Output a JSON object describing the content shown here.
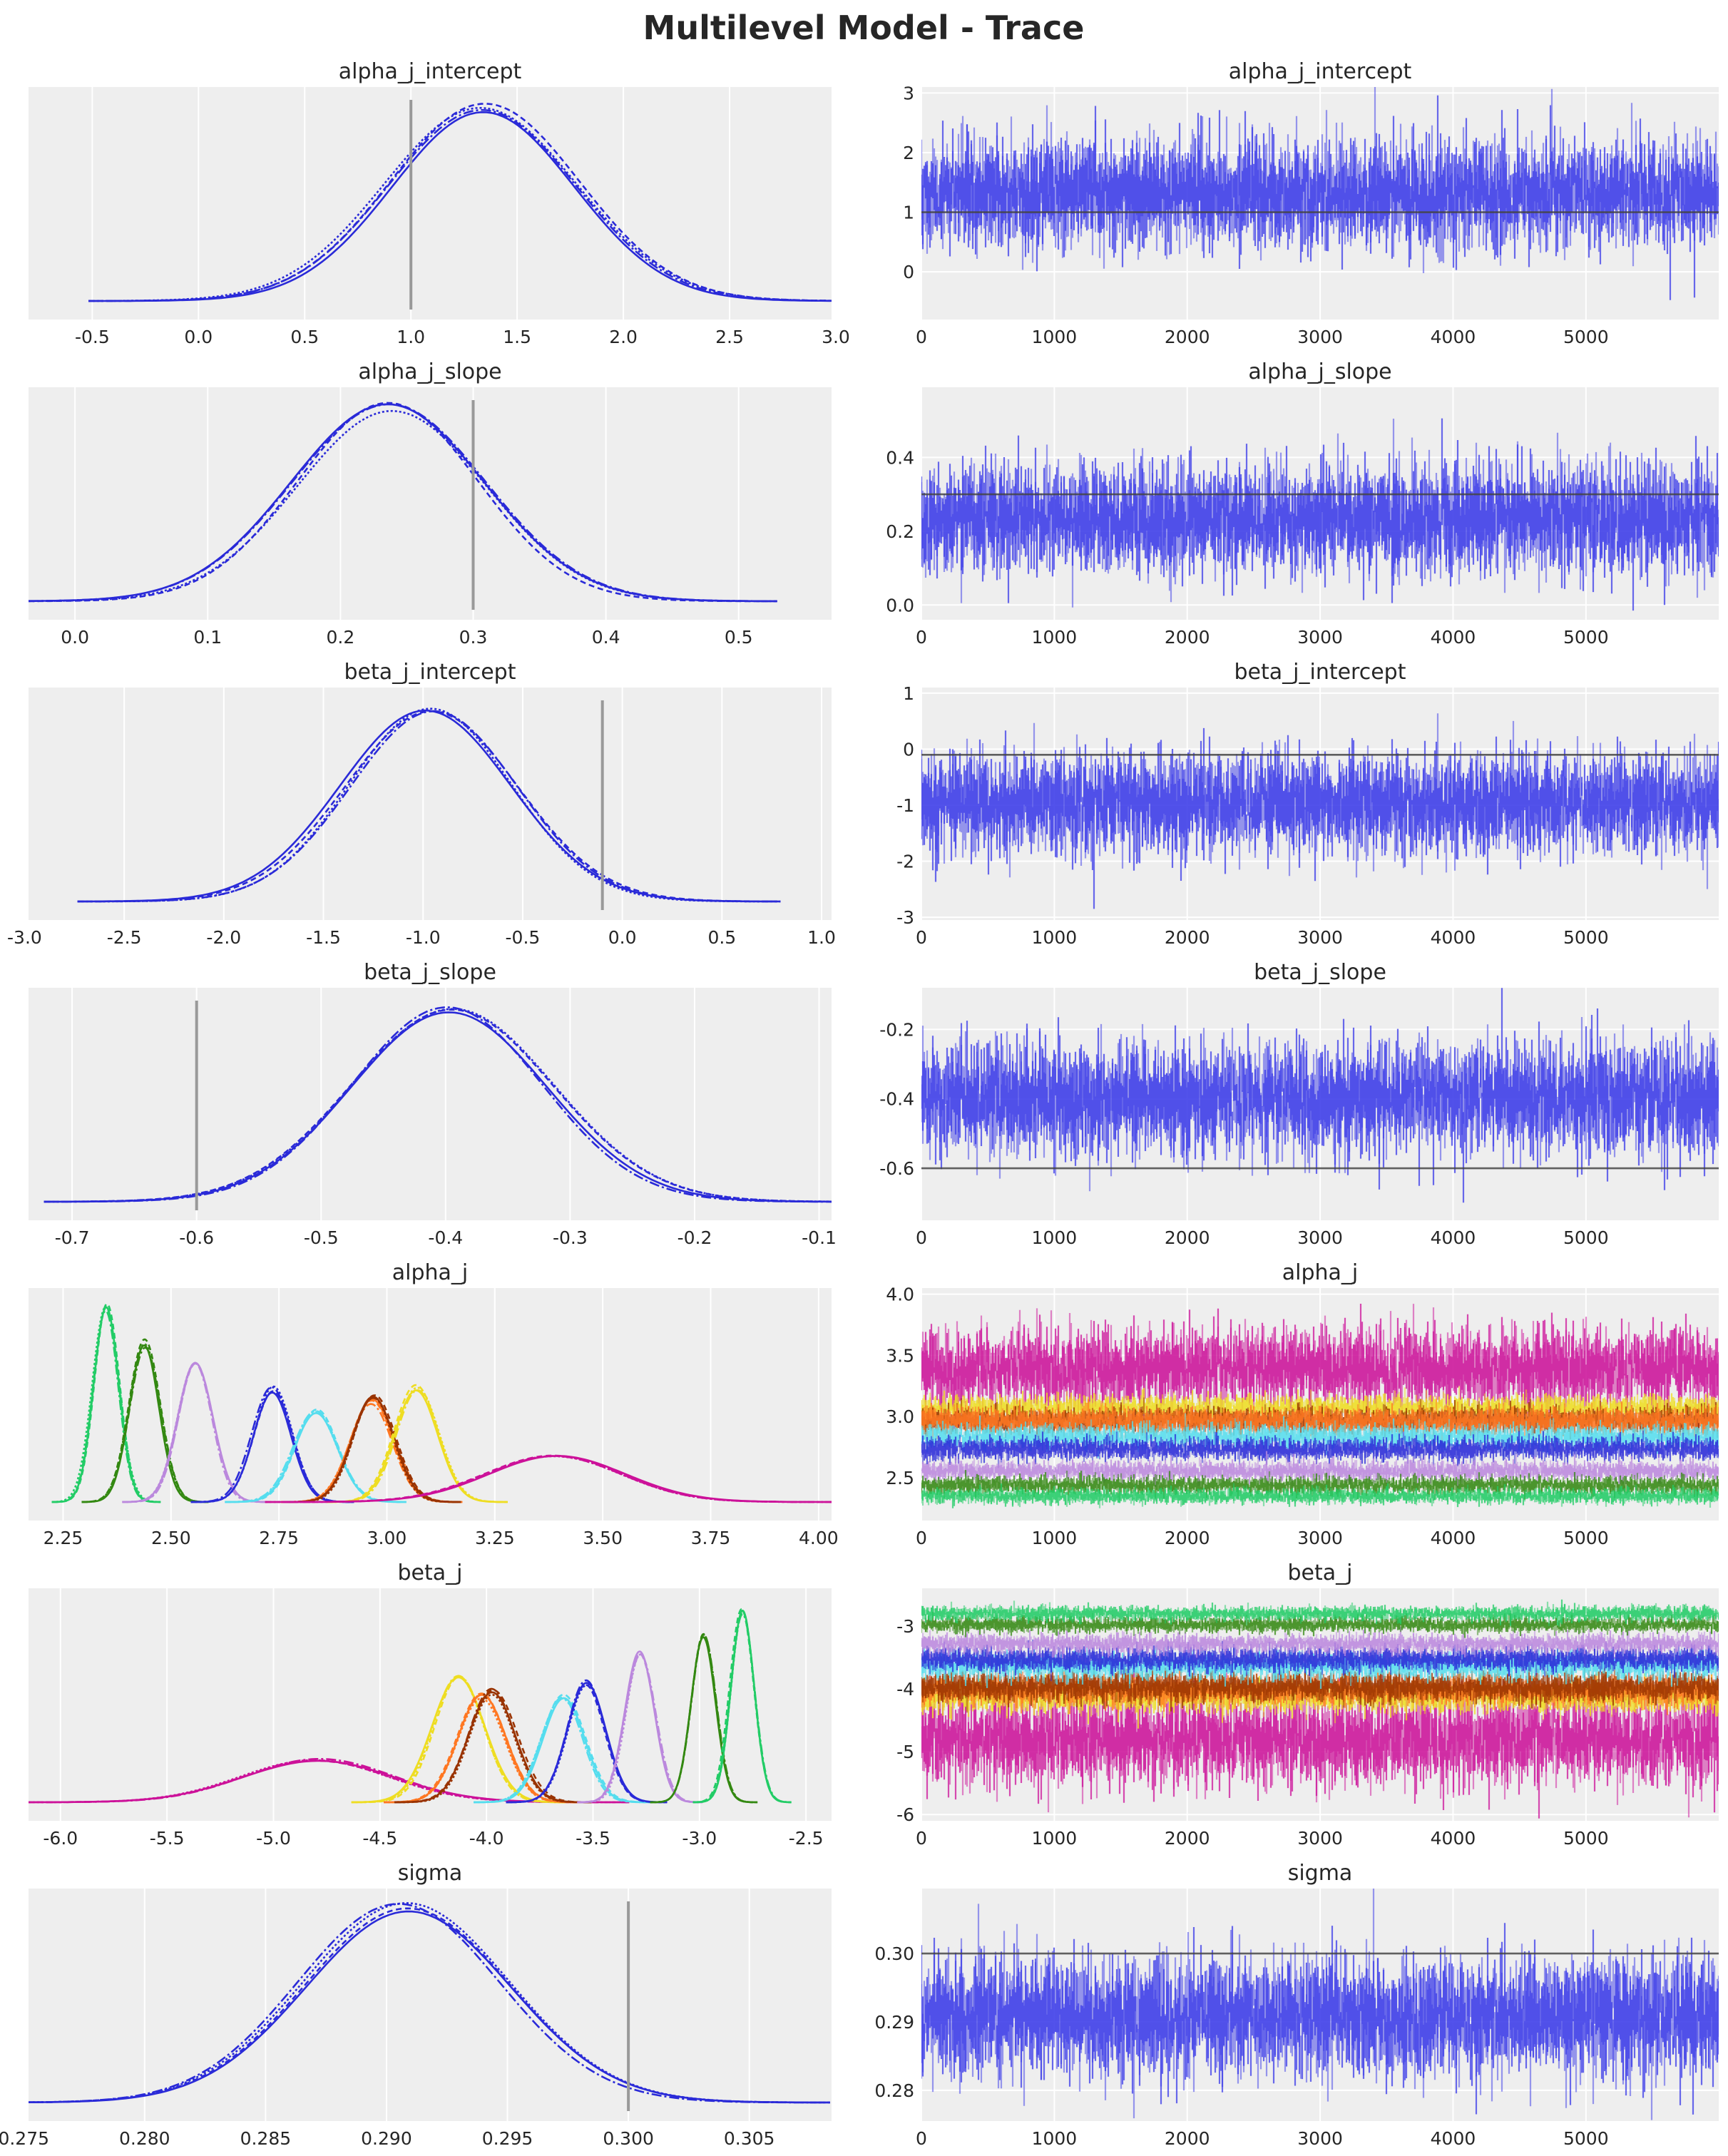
{
  "title": "Multilevel Model - Trace",
  "colors": {
    "panel_bg": "#eeeeee",
    "grid": "#ffffff",
    "chain": "#2a2ad8",
    "trace": "#3a3ae8",
    "ref_density": "#999999",
    "ref_trace": "#444444",
    "groups": [
      "#22cc66",
      "#338811",
      "#bb88dd",
      "#2a2ad8",
      "#55ddee",
      "#ff7722",
      "#993300",
      "#eedd22",
      "#cc1199"
    ]
  },
  "chart_data": [
    {
      "type": "line",
      "title": "alpha_j_intercept",
      "kind": "density",
      "xlim": [
        -0.8,
        2.98
      ],
      "xticks": [
        "-0.5",
        "0.0",
        "0.5",
        "1.0",
        "1.5",
        "2.0",
        "2.5",
        "3.0"
      ],
      "xtick_values": [
        -0.5,
        0,
        0.5,
        1.0,
        1.5,
        2.0,
        2.5,
        3.0
      ],
      "reference_line": 1.0,
      "series": [
        {
          "color": "#2a2ad8",
          "mean": 1.33,
          "sd": 0.44,
          "ymax": 1.0
        }
      ]
    },
    {
      "type": "line",
      "title": "alpha_j_intercept",
      "kind": "trace",
      "xlim": [
        0,
        5999
      ],
      "ylim": [
        -0.8,
        3.1
      ],
      "xticks": [
        "0",
        "1000",
        "2000",
        "3000",
        "4000",
        "5000"
      ],
      "xtick_values": [
        0,
        1000,
        2000,
        3000,
        4000,
        5000
      ],
      "yticks": [
        "0",
        "1",
        "2",
        "3"
      ],
      "ytick_values": [
        0,
        1,
        2,
        3
      ],
      "reference_line": 1.0,
      "series": [
        {
          "color": "#3a3ae8",
          "mean": 1.33,
          "sd": 0.44
        }
      ]
    },
    {
      "type": "line",
      "title": "alpha_j_slope",
      "kind": "density",
      "xlim": [
        -0.035,
        0.57
      ],
      "xticks": [
        "0.0",
        "0.1",
        "0.2",
        "0.3",
        "0.4",
        "0.5"
      ],
      "xtick_values": [
        0,
        0.1,
        0.2,
        0.3,
        0.4,
        0.5
      ],
      "reference_line": 0.3,
      "series": [
        {
          "color": "#2a2ad8",
          "mean": 0.235,
          "sd": 0.07,
          "ymax": 1.0
        }
      ]
    },
    {
      "type": "line",
      "title": "alpha_j_slope",
      "kind": "trace",
      "xlim": [
        0,
        5999
      ],
      "ylim": [
        -0.04,
        0.59
      ],
      "xticks": [
        "0",
        "1000",
        "2000",
        "3000",
        "4000",
        "5000"
      ],
      "xtick_values": [
        0,
        1000,
        2000,
        3000,
        4000,
        5000
      ],
      "yticks": [
        "0.0",
        "0.2",
        "0.4"
      ],
      "ytick_values": [
        0,
        0.2,
        0.4
      ],
      "reference_line": 0.3,
      "series": [
        {
          "color": "#3a3ae8",
          "mean": 0.235,
          "sd": 0.07
        }
      ]
    },
    {
      "type": "line",
      "title": "beta_j_intercept",
      "kind": "density",
      "xlim": [
        -2.98,
        1.05
      ],
      "xticks": [
        "-3.0",
        "-2.5",
        "-2.0",
        "-1.5",
        "-1.0",
        "-0.5",
        "0.0",
        "0.5",
        "1.0"
      ],
      "xtick_values": [
        -3.0,
        -2.5,
        -2.0,
        -1.5,
        -1.0,
        -0.5,
        0,
        0.5,
        1.0
      ],
      "reference_line": -0.1,
      "series": [
        {
          "color": "#2a2ad8",
          "mean": -0.97,
          "sd": 0.42,
          "ymax": 1.0
        }
      ]
    },
    {
      "type": "line",
      "title": "beta_j_intercept",
      "kind": "trace",
      "xlim": [
        0,
        5999
      ],
      "ylim": [
        -3.05,
        1.1
      ],
      "xticks": [
        "0",
        "1000",
        "2000",
        "3000",
        "4000",
        "5000"
      ],
      "xtick_values": [
        0,
        1000,
        2000,
        3000,
        4000,
        5000
      ],
      "yticks": [
        "-3",
        "-2",
        "-1",
        "0",
        "1"
      ],
      "ytick_values": [
        -3,
        -2,
        -1,
        0,
        1
      ],
      "reference_line": -0.1,
      "series": [
        {
          "color": "#3a3ae8",
          "mean": -0.97,
          "sd": 0.42
        }
      ]
    },
    {
      "type": "line",
      "title": "beta_j_slope",
      "kind": "density",
      "xlim": [
        -0.735,
        -0.09
      ],
      "xticks": [
        "-0.7",
        "-0.6",
        "-0.5",
        "-0.4",
        "-0.3",
        "-0.2",
        "-0.1"
      ],
      "xtick_values": [
        -0.7,
        -0.6,
        -0.5,
        -0.4,
        -0.3,
        -0.2,
        -0.1
      ],
      "reference_line": -0.6,
      "series": [
        {
          "color": "#2a2ad8",
          "mean": -0.395,
          "sd": 0.078,
          "ymax": 1.0
        }
      ]
    },
    {
      "type": "line",
      "title": "beta_j_slope",
      "kind": "trace",
      "xlim": [
        0,
        5999
      ],
      "ylim": [
        -0.75,
        -0.08
      ],
      "xticks": [
        "0",
        "1000",
        "2000",
        "3000",
        "4000",
        "5000"
      ],
      "xtick_values": [
        0,
        1000,
        2000,
        3000,
        4000,
        5000
      ],
      "yticks": [
        "-0.6",
        "-0.4",
        "-0.2"
      ],
      "ytick_values": [
        -0.6,
        -0.4,
        -0.2
      ],
      "reference_line": -0.6,
      "series": [
        {
          "color": "#3a3ae8",
          "mean": -0.395,
          "sd": 0.078
        }
      ]
    },
    {
      "type": "line",
      "title": "alpha_j",
      "kind": "density",
      "xlim": [
        2.17,
        4.03
      ],
      "xticks": [
        "2.25",
        "2.50",
        "2.75",
        "3.00",
        "3.25",
        "3.50",
        "3.75",
        "4.00"
      ],
      "xtick_values": [
        2.25,
        2.5,
        2.75,
        3.0,
        3.25,
        3.5,
        3.75,
        4.0
      ],
      "series": [
        {
          "color": "#22cc66",
          "mean": 2.35,
          "sd": 0.03,
          "ymax": 1.0
        },
        {
          "color": "#338811",
          "mean": 2.44,
          "sd": 0.035,
          "ymax": 0.82
        },
        {
          "color": "#bb88dd",
          "mean": 2.555,
          "sd": 0.04,
          "ymax": 0.73
        },
        {
          "color": "#2a2ad8",
          "mean": 2.735,
          "sd": 0.045,
          "ymax": 0.58
        },
        {
          "color": "#55ddee",
          "mean": 2.835,
          "sd": 0.05,
          "ymax": 0.47
        },
        {
          "color": "#ff7722",
          "mean": 2.965,
          "sd": 0.05,
          "ymax": 0.52
        },
        {
          "color": "#993300",
          "mean": 2.97,
          "sd": 0.048,
          "ymax": 0.55
        },
        {
          "color": "#eedd22",
          "mean": 3.07,
          "sd": 0.05,
          "ymax": 0.59
        },
        {
          "color": "#cc1199",
          "mean": 3.39,
          "sd": 0.16,
          "ymax": 0.24
        }
      ]
    },
    {
      "type": "line",
      "title": "alpha_j",
      "kind": "trace",
      "xlim": [
        0,
        5999
      ],
      "ylim": [
        2.15,
        4.05
      ],
      "xticks": [
        "0",
        "1000",
        "2000",
        "3000",
        "4000",
        "5000"
      ],
      "xtick_values": [
        0,
        1000,
        2000,
        3000,
        4000,
        5000
      ],
      "yticks": [
        "2.5",
        "3.0",
        "3.5",
        "4.0"
      ],
      "ytick_values": [
        2.5,
        3.0,
        3.5,
        4.0
      ],
      "series": [
        {
          "color": "#cc1199",
          "mean": 3.39,
          "sd": 0.16
        },
        {
          "color": "#eedd22",
          "mean": 3.07,
          "sd": 0.05
        },
        {
          "color": "#993300",
          "mean": 2.97,
          "sd": 0.048
        },
        {
          "color": "#ff7722",
          "mean": 2.965,
          "sd": 0.05
        },
        {
          "color": "#55ddee",
          "mean": 2.835,
          "sd": 0.05
        },
        {
          "color": "#2a2ad8",
          "mean": 2.735,
          "sd": 0.045
        },
        {
          "color": "#bb88dd",
          "mean": 2.555,
          "sd": 0.04
        },
        {
          "color": "#338811",
          "mean": 2.44,
          "sd": 0.035
        },
        {
          "color": "#22cc66",
          "mean": 2.35,
          "sd": 0.03
        }
      ]
    },
    {
      "type": "line",
      "title": "beta_j",
      "kind": "density",
      "xlim": [
        -6.15,
        -2.38
      ],
      "xticks": [
        "-6.0",
        "-5.5",
        "-5.0",
        "-4.5",
        "-4.0",
        "-3.5",
        "-3.0",
        "-2.5"
      ],
      "xtick_values": [
        -6.0,
        -5.5,
        -5.0,
        -4.5,
        -4.0,
        -3.5,
        -3.0,
        -2.5
      ],
      "series": [
        {
          "color": "#cc1199",
          "mean": -4.8,
          "sd": 0.35,
          "ymax": 0.22
        },
        {
          "color": "#eedd22",
          "mean": -4.13,
          "sd": 0.12,
          "ymax": 0.65
        },
        {
          "color": "#ff7722",
          "mean": -4.02,
          "sd": 0.11,
          "ymax": 0.55
        },
        {
          "color": "#993300",
          "mean": -3.97,
          "sd": 0.11,
          "ymax": 0.57
        },
        {
          "color": "#55ddee",
          "mean": -3.64,
          "sd": 0.1,
          "ymax": 0.55
        },
        {
          "color": "#2a2ad8",
          "mean": -3.53,
          "sd": 0.09,
          "ymax": 0.62
        },
        {
          "color": "#bb88dd",
          "mean": -3.28,
          "sd": 0.07,
          "ymax": 0.78
        },
        {
          "color": "#338811",
          "mean": -2.98,
          "sd": 0.06,
          "ymax": 0.87
        },
        {
          "color": "#22cc66",
          "mean": -2.8,
          "sd": 0.055,
          "ymax": 1.0
        }
      ]
    },
    {
      "type": "line",
      "title": "beta_j",
      "kind": "trace",
      "xlim": [
        0,
        5999
      ],
      "ylim": [
        -6.1,
        -2.4
      ],
      "xticks": [
        "0",
        "1000",
        "2000",
        "3000",
        "4000",
        "5000"
      ],
      "xtick_values": [
        0,
        1000,
        2000,
        3000,
        4000,
        5000
      ],
      "yticks": [
        "-6",
        "-5",
        "-4",
        "-3"
      ],
      "ytick_values": [
        -6,
        -5,
        -4,
        -3
      ],
      "series": [
        {
          "color": "#cc1199",
          "mean": -4.8,
          "sd": 0.35
        },
        {
          "color": "#eedd22",
          "mean": -4.13,
          "sd": 0.12
        },
        {
          "color": "#ff7722",
          "mean": -4.02,
          "sd": 0.11
        },
        {
          "color": "#993300",
          "mean": -3.97,
          "sd": 0.11
        },
        {
          "color": "#55ddee",
          "mean": -3.64,
          "sd": 0.1
        },
        {
          "color": "#2a2ad8",
          "mean": -3.53,
          "sd": 0.09
        },
        {
          "color": "#bb88dd",
          "mean": -3.28,
          "sd": 0.07
        },
        {
          "color": "#338811",
          "mean": -2.98,
          "sd": 0.06
        },
        {
          "color": "#22cc66",
          "mean": -2.8,
          "sd": 0.055
        }
      ]
    },
    {
      "type": "line",
      "title": "sigma",
      "kind": "density",
      "xlim": [
        0.2752,
        0.3084
      ],
      "xticks": [
        "0.275",
        "0.280",
        "0.285",
        "0.290",
        "0.295",
        "0.300",
        "0.305"
      ],
      "xtick_values": [
        0.275,
        0.28,
        0.285,
        0.29,
        0.295,
        0.3,
        0.305
      ],
      "reference_line": 0.3,
      "series": [
        {
          "color": "#2a2ad8",
          "mean": 0.2907,
          "sd": 0.0042,
          "ymax": 1.0
        }
      ]
    },
    {
      "type": "line",
      "title": "sigma",
      "kind": "trace",
      "xlim": [
        0,
        5999
      ],
      "ylim": [
        0.2755,
        0.3095
      ],
      "xticks": [
        "0",
        "1000",
        "2000",
        "3000",
        "4000",
        "5000"
      ],
      "xtick_values": [
        0,
        1000,
        2000,
        3000,
        4000,
        5000
      ],
      "yticks": [
        "0.28",
        "0.29",
        "0.30"
      ],
      "ytick_values": [
        0.28,
        0.29,
        0.3
      ],
      "reference_line": 0.3,
      "series": [
        {
          "color": "#3a3ae8",
          "mean": 0.2907,
          "sd": 0.0042
        }
      ]
    }
  ]
}
